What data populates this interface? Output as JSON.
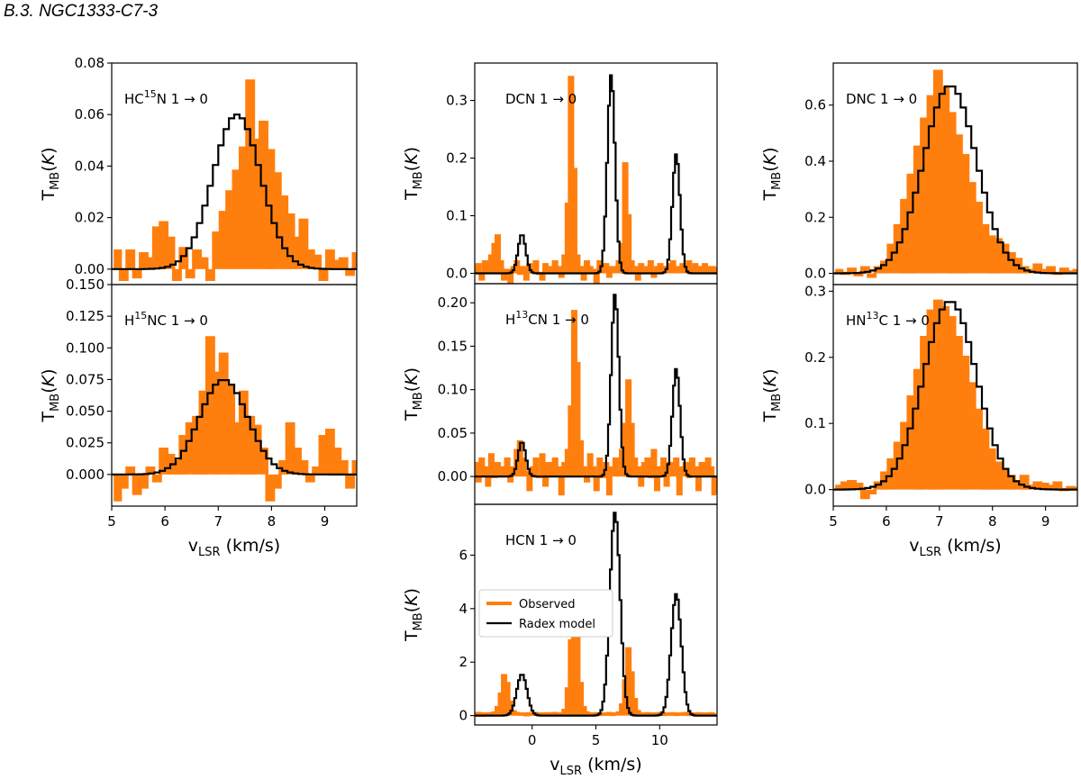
{
  "page": {
    "heading": "B.3. NGC1333-C7-3"
  },
  "colors": {
    "observed": "#ff7f0e",
    "model": "#000000",
    "axes": "#000000"
  },
  "axis_text": {
    "ylabel": {
      "main": "T",
      "sub": "MB",
      "rest": "(",
      "var": "K",
      "close": ")"
    },
    "xlabel": {
      "main": "v",
      "sub": "LSR",
      "rest": " (km/s)"
    }
  },
  "legend": {
    "observed": "Observed",
    "model": "Radex model",
    "location": "center-left"
  },
  "chart_data": [
    {
      "id": "hc15n",
      "type": "line",
      "column": "left",
      "row": 1,
      "label": {
        "pre": "HC",
        "sup": "15",
        "post": "N 1 → 0"
      },
      "xlim": [
        5.0,
        9.6
      ],
      "ylim": [
        -0.006,
        0.08
      ],
      "yticks": [
        "0.00",
        "0.02",
        "0.04",
        "0.06",
        "0.08"
      ],
      "ytick_values": [
        0,
        0.02,
        0.04,
        0.06,
        0.08
      ],
      "xticks": [],
      "xtick_values": [],
      "show_xlabel": false,
      "show_ylabel": true,
      "observed": {
        "x0": 5.1,
        "dx": 0.125,
        "y": [
          0.007,
          -0.004,
          0.007,
          -0.003,
          0.006,
          0.004,
          0.016,
          0.018,
          0.012,
          -0.004,
          0.008,
          -0.003,
          0.007,
          0.004,
          -0.004,
          0.014,
          0.022,
          0.03,
          0.038,
          0.047,
          0.073,
          0.05,
          0.057,
          0.046,
          0.037,
          0.028,
          0.021,
          0.012,
          0.019,
          0.007,
          0.005,
          -0.004,
          0.007,
          0.003,
          0.004,
          -0.002,
          0.006,
          0.0,
          0.003,
          -0.004
        ]
      },
      "model": {
        "center": 7.35,
        "sigma": 0.45,
        "amp": 0.06,
        "x0": 5.05,
        "dx": 0.1,
        "n": 46
      }
    },
    {
      "id": "h15nc",
      "type": "line",
      "column": "left",
      "row": 2,
      "label": {
        "pre": "H",
        "sup": "15",
        "post": "NC 1 → 0"
      },
      "xlim": [
        5.0,
        9.6
      ],
      "ylim": [
        -0.025,
        0.15
      ],
      "yticks": [
        "0.000",
        "0.025",
        "0.050",
        "0.075",
        "0.100",
        "0.125",
        "0.150"
      ],
      "ytick_values": [
        0,
        0.025,
        0.05,
        0.075,
        0.1,
        0.125,
        0.15
      ],
      "xticks": [
        "5",
        "6",
        "7",
        "8",
        "9"
      ],
      "xtick_values": [
        5,
        6,
        7,
        8,
        9
      ],
      "show_xlabel": true,
      "show_ylabel": true,
      "observed": {
        "x0": 5.1,
        "dx": 0.125,
        "y": [
          -0.02,
          -0.01,
          0.005,
          -0.015,
          -0.01,
          0.005,
          -0.005,
          0.02,
          0.015,
          0.01,
          0.03,
          0.04,
          0.045,
          0.065,
          0.108,
          0.08,
          0.095,
          0.07,
          0.04,
          0.065,
          0.045,
          0.038,
          0.02,
          -0.02,
          -0.01,
          0.01,
          0.04,
          0.02,
          0.01,
          -0.005,
          0.005,
          0.03,
          0.035,
          0.02,
          0.01,
          -0.01,
          0.01,
          0.03,
          0.02,
          -0.005
        ]
      },
      "model": {
        "center": 7.1,
        "sigma": 0.45,
        "amp": 0.075,
        "x0": 5.05,
        "dx": 0.1,
        "n": 46
      }
    },
    {
      "id": "dcn",
      "type": "line",
      "column": "middle",
      "row": 1,
      "label": {
        "pre": "DCN 1 → 0",
        "sup": "",
        "post": ""
      },
      "xlim": [
        -4.5,
        14.5
      ],
      "ylim": [
        -0.018,
        0.365
      ],
      "yticks": [
        "0.0",
        "0.1",
        "0.2",
        "0.3"
      ],
      "ytick_values": [
        0,
        0.1,
        0.2,
        0.3
      ],
      "xticks": [],
      "xtick_values": [],
      "show_xlabel": false,
      "show_ylabel": true,
      "observed": {
        "x0": -4.45,
        "dx": 0.25,
        "y": [
          0.01,
          0.015,
          -0.01,
          0.02,
          0.005,
          0.03,
          0.05,
          0.065,
          0.02,
          -0.01,
          0.005,
          -0.015,
          0.01,
          0.02,
          0.0,
          0.01,
          -0.01,
          0.015,
          0.005,
          0.02,
          0.0,
          -0.01,
          0.015,
          0.01,
          0.005,
          0.02,
          0.01,
          -0.005,
          0.03,
          0.12,
          0.34,
          0.18,
          0.03,
          0.01,
          -0.01,
          0.02,
          0.01,
          0.005,
          -0.015,
          0.02,
          0.01,
          0.015,
          -0.005,
          0.01,
          0.005,
          0.02,
          0.05,
          0.19,
          0.1,
          0.02,
          0.01,
          -0.01,
          0.015,
          0.005,
          0.01,
          0.02,
          -0.005,
          0.01,
          0.015,
          0.005,
          0.01,
          0.015,
          0.02,
          0.01,
          0.005,
          0.015,
          0.01,
          0.02,
          0.01,
          0.015,
          0.005,
          0.01,
          0.015,
          0.01,
          0.005,
          0.01
        ]
      },
      "model": {
        "x0": -4.475,
        "dx": 0.15,
        "n": 127,
        "comps": [
          [
            -0.8,
            0.3,
            0.068
          ],
          [
            6.2,
            0.3,
            0.345
          ],
          [
            11.3,
            0.3,
            0.207
          ]
        ]
      }
    },
    {
      "id": "h13cn",
      "type": "line",
      "column": "middle",
      "row": 2,
      "label": {
        "pre": "H",
        "sup": "13",
        "post": "CN 1 → 0"
      },
      "xlim": [
        -4.5,
        14.5
      ],
      "ylim": [
        -0.032,
        0.222
      ],
      "yticks": [
        "0.00",
        "0.05",
        "0.10",
        "0.15",
        "0.20"
      ],
      "ytick_values": [
        0,
        0.05,
        0.1,
        0.15,
        0.2
      ],
      "xticks": [],
      "xtick_values": [],
      "show_xlabel": false,
      "show_ylabel": true,
      "observed": {
        "x0": -4.45,
        "dx": 0.25,
        "y": [
          0.015,
          -0.005,
          0.02,
          0.01,
          -0.01,
          0.025,
          0.0,
          0.015,
          0.005,
          0.01,
          0.02,
          -0.005,
          0.01,
          0.03,
          0.04,
          0.02,
          0.005,
          -0.015,
          0.01,
          0.02,
          0.0,
          0.025,
          -0.01,
          0.015,
          0.005,
          0.02,
          0.01,
          -0.02,
          0.015,
          0.03,
          0.08,
          0.19,
          0.13,
          0.04,
          0.01,
          -0.005,
          0.025,
          0.01,
          -0.015,
          0.02,
          0.0,
          0.015,
          -0.02,
          0.01,
          0.02,
          0.005,
          0.03,
          0.06,
          0.11,
          0.06,
          0.02,
          0.01,
          -0.01,
          0.015,
          0.02,
          0.0,
          0.03,
          -0.015,
          0.01,
          0.02,
          -0.01,
          0.015,
          0.005,
          0.02,
          -0.02,
          0.01,
          0.015,
          0.0,
          0.02,
          0.01,
          -0.015,
          0.015,
          0.005,
          0.02,
          0.01,
          -0.02
        ]
      },
      "model": {
        "x0": -4.475,
        "dx": 0.15,
        "n": 127,
        "comps": [
          [
            -0.8,
            0.3,
            0.04
          ],
          [
            6.5,
            0.3,
            0.21
          ],
          [
            11.3,
            0.3,
            0.124
          ]
        ]
      }
    },
    {
      "id": "hcn",
      "type": "line",
      "column": "middle",
      "row": 3,
      "label": {
        "pre": "HCN 1 → 0",
        "sup": "",
        "post": ""
      },
      "xlim": [
        -4.5,
        14.5
      ],
      "ylim": [
        -0.35,
        7.9
      ],
      "yticks": [
        "0",
        "2",
        "4",
        "6"
      ],
      "ytick_values": [
        0,
        2,
        4,
        6
      ],
      "xticks": [
        "0",
        "5",
        "10"
      ],
      "xtick_values": [
        0,
        5,
        10
      ],
      "show_xlabel": true,
      "show_ylabel": true,
      "observed": {
        "x0": -4.45,
        "dx": 0.25,
        "y": [
          0.05,
          0.08,
          0.02,
          0.06,
          0.03,
          0.07,
          0.1,
          0.3,
          0.8,
          1.5,
          1.2,
          0.5,
          0.15,
          0.08,
          0.05,
          0.06,
          0.03,
          0.07,
          0.05,
          0.08,
          0.04,
          0.06,
          0.05,
          0.07,
          0.04,
          0.08,
          0.06,
          0.05,
          0.2,
          1.0,
          2.8,
          4.5,
          3.2,
          1.2,
          0.3,
          0.1,
          0.06,
          0.05,
          0.07,
          0.04,
          0.06,
          0.05,
          0.08,
          0.04,
          0.06,
          0.1,
          0.4,
          1.3,
          2.5,
          1.6,
          0.6,
          0.15,
          0.06,
          0.05,
          0.07,
          0.04,
          0.06,
          0.05,
          0.08,
          0.04,
          0.06,
          0.05,
          0.07,
          0.04,
          0.06,
          0.05,
          0.08,
          0.04,
          0.06,
          0.05,
          0.07,
          0.04,
          0.06,
          0.05,
          0.07,
          0.04
        ]
      },
      "model": {
        "x0": -4.475,
        "dx": 0.15,
        "n": 127,
        "comps": [
          [
            -0.8,
            0.4,
            1.55
          ],
          [
            6.5,
            0.4,
            7.6
          ],
          [
            11.3,
            0.4,
            4.55
          ]
        ]
      }
    },
    {
      "id": "dnc",
      "type": "line",
      "column": "right",
      "row": 1,
      "label": {
        "pre": "DNC 1 → 0",
        "sup": "",
        "post": ""
      },
      "xlim": [
        5.0,
        9.6
      ],
      "ylim": [
        -0.04,
        0.75
      ],
      "yticks": [
        "0.0",
        "0.2",
        "0.4",
        "0.6"
      ],
      "ytick_values": [
        0,
        0.2,
        0.4,
        0.6
      ],
      "xticks": [],
      "xtick_values": [],
      "show_xlabel": false,
      "show_ylabel": true,
      "observed": {
        "x0": 5.1,
        "dx": 0.125,
        "y": [
          0.01,
          0.0,
          0.015,
          -0.005,
          0.02,
          -0.01,
          0.02,
          0.04,
          0.1,
          0.17,
          0.26,
          0.35,
          0.45,
          0.55,
          0.63,
          0.72,
          0.66,
          0.57,
          0.49,
          0.42,
          0.32,
          0.25,
          0.17,
          0.13,
          0.12,
          0.1,
          0.07,
          0.05,
          0.02,
          0.01,
          0.03,
          0.01,
          0.02,
          0.0,
          0.015,
          0.005,
          0.01,
          -0.02,
          0.0,
          0.005
        ]
      },
      "model": {
        "center": 7.2,
        "sigma": 0.5,
        "amp": 0.67,
        "x0": 5.05,
        "dx": 0.1,
        "n": 46
      }
    },
    {
      "id": "hn13c",
      "type": "line",
      "column": "right",
      "row": 2,
      "label": {
        "pre": "HN",
        "sup": "13",
        "post": "C 1 → 0"
      },
      "xlim": [
        5.0,
        9.6
      ],
      "ylim": [
        -0.025,
        0.31
      ],
      "yticks": [
        "0.0",
        "0.1",
        "0.2",
        "0.3"
      ],
      "ytick_values": [
        0,
        0.1,
        0.2,
        0.3
      ],
      "xticks": [
        "5",
        "6",
        "7",
        "8",
        "9"
      ],
      "xtick_values": [
        5,
        6,
        7,
        8,
        9
      ],
      "show_xlabel": true,
      "show_ylabel": true,
      "observed": {
        "x0": 5.1,
        "dx": 0.125,
        "y": [
          0.005,
          0.01,
          0.012,
          0.008,
          -0.012,
          -0.005,
          0.01,
          0.025,
          0.045,
          0.07,
          0.1,
          0.14,
          0.18,
          0.23,
          0.27,
          0.285,
          0.275,
          0.26,
          0.23,
          0.2,
          0.16,
          0.12,
          0.09,
          0.06,
          0.04,
          0.03,
          0.02,
          0.012,
          0.02,
          0.005,
          0.01,
          0.008,
          0.005,
          0.01,
          0.0,
          0.003,
          0.002,
          -0.01,
          -0.02,
          0.0
        ]
      },
      "model": {
        "center": 7.2,
        "sigma": 0.5,
        "amp": 0.285,
        "x0": 5.05,
        "dx": 0.1,
        "n": 46
      }
    }
  ]
}
